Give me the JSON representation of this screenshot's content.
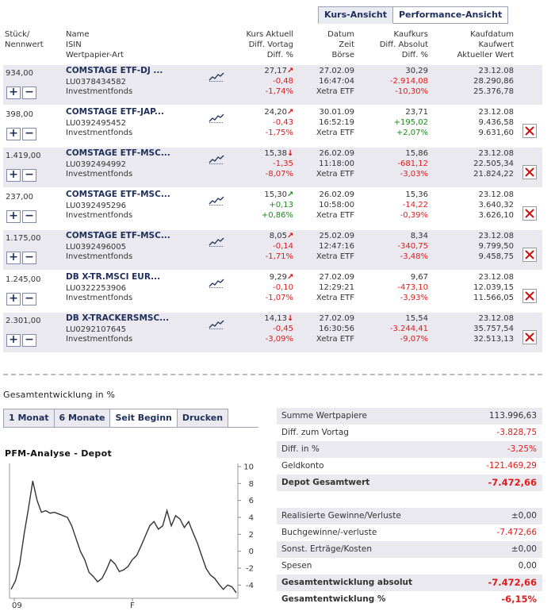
{
  "tabs": {
    "kurs": "Kurs-Ansicht",
    "performance": "Performance-Ansicht"
  },
  "headers": {
    "col1": [
      "Stück/",
      "Nennwert"
    ],
    "col2": [
      "Name",
      "ISIN",
      "Wertpapier-Art"
    ],
    "col3": [
      "Kurs Aktuell",
      "Diff. Vortag",
      "Diff. %"
    ],
    "col4": [
      "Datum",
      "Zeit",
      "Börse"
    ],
    "col5": [
      "Kaufkurs",
      "Diff. Absolut",
      "Diff. %"
    ],
    "col6": [
      "Kaufdatum",
      "Kaufwert",
      "Aktueller Wert"
    ]
  },
  "positions": [
    {
      "qty": "934,00",
      "name": "COMSTAGE ETF-DJ ...",
      "isin": "LU0378434582",
      "type": "Investmentfonds",
      "kurs": "27,17",
      "trend": "up-red",
      "diff_vortag": "-0,48",
      "diff_pct": "-1,74%",
      "datum": "27.02.09",
      "zeit": "16:47:04",
      "boerse": "Xetra ETF",
      "kaufkurs": "30,29",
      "diff_abs": "-2.914,08",
      "kauf_diff_pct": "-10,30%",
      "kaufdatum": "23.12.08",
      "kaufwert": "28.290,86",
      "akt_wert": "25.376,78",
      "deletable": false
    },
    {
      "qty": "398,00",
      "name": "COMSTAGE ETF-JAP...",
      "isin": "LU0392495452",
      "type": "Investmentfonds",
      "kurs": "24,20",
      "trend": "up-red",
      "diff_vortag": "-0,43",
      "diff_pct": "-1,75%",
      "datum": "30.01.09",
      "zeit": "16:52:19",
      "boerse": "Xetra ETF",
      "kaufkurs": "23,71",
      "diff_abs": "+195,02",
      "kauf_diff_pct": "+2,07%",
      "kaufdatum": "23.12.08",
      "kaufwert": "9.436,58",
      "akt_wert": "9.631,60",
      "deletable": true
    },
    {
      "qty": "1.419,00",
      "name": "COMSTAGE ETF-MSC...",
      "isin": "LU0392494992",
      "type": "Investmentfonds",
      "kurs": "15,38",
      "trend": "down-red",
      "diff_vortag": "-1,35",
      "diff_pct": "-8,07%",
      "datum": "26.02.09",
      "zeit": "11:18:00",
      "boerse": "Xetra ETF",
      "kaufkurs": "15,86",
      "diff_abs": "-681,12",
      "kauf_diff_pct": "-3,03%",
      "kaufdatum": "23.12.08",
      "kaufwert": "22.505,34",
      "akt_wert": "21.824,22",
      "deletable": true
    },
    {
      "qty": "237,00",
      "name": "COMSTAGE ETF-MSC...",
      "isin": "LU0392495296",
      "type": "Investmentfonds",
      "kurs": "15,30",
      "trend": "up-green",
      "diff_vortag": "+0,13",
      "diff_pct": "+0,86%",
      "datum": "26.02.09",
      "zeit": "10:58:00",
      "boerse": "Xetra ETF",
      "kaufkurs": "15,36",
      "diff_abs": "-14,22",
      "kauf_diff_pct": "-0,39%",
      "kaufdatum": "23.12.08",
      "kaufwert": "3.640,32",
      "akt_wert": "3.626,10",
      "deletable": true
    },
    {
      "qty": "1.175,00",
      "name": "COMSTAGE ETF-MSC...",
      "isin": "LU0392496005",
      "type": "Investmentfonds",
      "kurs": "8,05",
      "trend": "up-red",
      "diff_vortag": "-0,14",
      "diff_pct": "-1,71%",
      "datum": "25.02.09",
      "zeit": "12:47:16",
      "boerse": "Xetra ETF",
      "kaufkurs": "8,34",
      "diff_abs": "-340,75",
      "kauf_diff_pct": "-3,48%",
      "kaufdatum": "23.12.08",
      "kaufwert": "9.799,50",
      "akt_wert": "9.458,75",
      "deletable": true
    },
    {
      "qty": "1.245,00",
      "name": "DB X-TR.MSCI EUR...",
      "isin": "LU0322253906",
      "type": "Investmentfonds",
      "kurs": "9,29",
      "trend": "up-red",
      "diff_vortag": "-0,10",
      "diff_pct": "-1,07%",
      "datum": "27.02.09",
      "zeit": "12:29:21",
      "boerse": "Xetra ETF",
      "kaufkurs": "9,67",
      "diff_abs": "-473,10",
      "kauf_diff_pct": "-3,93%",
      "kaufdatum": "23.12.08",
      "kaufwert": "12.039,15",
      "akt_wert": "11.566,05",
      "deletable": true
    },
    {
      "qty": "2.301,00",
      "name": "DB X-TRACKERSMSC...",
      "isin": "LU0292107645",
      "type": "Investmentfonds",
      "kurs": "14,13",
      "trend": "down-red",
      "diff_vortag": "-0,45",
      "diff_pct": "-3,09%",
      "datum": "27.02.09",
      "zeit": "16:30:56",
      "boerse": "Xetra ETF",
      "kaufkurs": "15,54",
      "diff_abs": "-3.244,41",
      "kauf_diff_pct": "-9,07%",
      "kaufdatum": "23.12.08",
      "kaufwert": "35.757,54",
      "akt_wert": "32.513,13",
      "deletable": true
    }
  ],
  "lower": {
    "title": "Gesamtentwicklung in %",
    "periods": [
      "1 Monat",
      "6 Monate",
      "Seit Beginn",
      "Drucken"
    ],
    "active_period": "Seit Beginn",
    "chart_title": "PFM-Analyse - Depot"
  },
  "chart_data": {
    "type": "line",
    "title": "PFM-Analyse - Depot",
    "x_ticks": [
      "09",
      "F"
    ],
    "y_ticks": [
      10,
      8,
      6,
      4,
      2,
      0,
      -2,
      -4
    ],
    "ylim": [
      -5,
      10
    ],
    "series": [
      {
        "values": [
          -4.5,
          -3.5,
          -1.5,
          2.0,
          5.0,
          8.3,
          6.0,
          4.6,
          4.8,
          4.5,
          4.6,
          4.4,
          4.2,
          4.0,
          3.0,
          1.5,
          0.0,
          -1.0,
          -2.5,
          -3.0,
          -3.6,
          -3.2,
          -2.2,
          -1.0,
          -1.5,
          -2.4,
          -2.2,
          -1.8,
          -1.0,
          -0.5,
          0.6,
          1.8,
          3.0,
          3.5,
          2.6,
          3.0,
          4.8,
          3.0,
          4.2,
          3.8,
          2.8,
          3.5,
          2.2,
          1.0,
          -0.5,
          -2.0,
          -2.8,
          -3.2,
          -3.9,
          -4.5,
          -4.0,
          -4.2,
          -4.9
        ]
      }
    ]
  },
  "summary": [
    {
      "label": "Summe Wertpapiere",
      "value": "113.996,63",
      "tone": "plain",
      "bold": false,
      "shade": true
    },
    {
      "label": "Diff. zum Vortag",
      "value": "-3.828,75",
      "tone": "neg",
      "bold": false,
      "shade": false
    },
    {
      "label": "Diff. in %",
      "value": "-3,25%",
      "tone": "neg",
      "bold": false,
      "shade": true
    },
    {
      "label": "Geldkonto",
      "value": "-121.469,29",
      "tone": "neg",
      "bold": false,
      "shade": false
    },
    {
      "label": "Depot Gesamtwert",
      "value": "-7.472,66",
      "tone": "neg",
      "bold": true,
      "shade": true
    },
    {
      "label": "",
      "value": "",
      "tone": "plain",
      "bold": false,
      "shade": false
    },
    {
      "label": "Realisierte Gewinne/Verluste",
      "value": "±0,00",
      "tone": "plain",
      "bold": false,
      "shade": true
    },
    {
      "label": "Buchgewinne/-verluste",
      "value": "-7.472,66",
      "tone": "neg",
      "bold": false,
      "shade": false
    },
    {
      "label": "Sonst. Erträge/Kosten",
      "value": "±0,00",
      "tone": "plain",
      "bold": false,
      "shade": true
    },
    {
      "label": "Spesen",
      "value": "0,00",
      "tone": "plain",
      "bold": false,
      "shade": false
    },
    {
      "label": "Gesamtentwicklung absolut",
      "value": "-7.472,66",
      "tone": "neg",
      "bold": true,
      "shade": true
    },
    {
      "label": "Gesamtentwicklung %",
      "value": "-6,15%",
      "tone": "neg",
      "bold": true,
      "shade": false
    }
  ]
}
